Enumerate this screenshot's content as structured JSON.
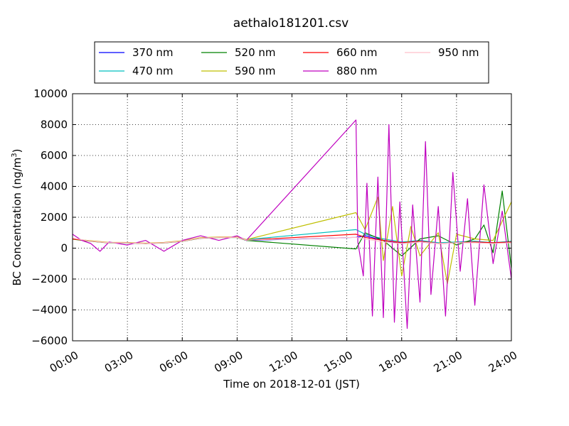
{
  "chart_data": {
    "type": "line",
    "title": "aethalo181201.csv",
    "xlabel": "Time on 2018-12-01 (JST)",
    "ylabel_main": "BC Concentration (ng/m",
    "ylabel_sup": "3",
    "ylabel_close": ")",
    "xlim_hours": [
      0,
      24
    ],
    "ylim": [
      -6000,
      10000
    ],
    "x_ticks": [
      {
        "hour": 0,
        "label": "00:00"
      },
      {
        "hour": 3,
        "label": "03:00"
      },
      {
        "hour": 6,
        "label": "06:00"
      },
      {
        "hour": 9,
        "label": "09:00"
      },
      {
        "hour": 12,
        "label": "12:00"
      },
      {
        "hour": 15,
        "label": "15:00"
      },
      {
        "hour": 18,
        "label": "18:00"
      },
      {
        "hour": 21,
        "label": "21:00"
      },
      {
        "hour": 24,
        "label": "24:00"
      }
    ],
    "y_ticks": [
      {
        "value": 10000,
        "label": "10000"
      },
      {
        "value": 8000,
        "label": "8000"
      },
      {
        "value": 6000,
        "label": "6000"
      },
      {
        "value": 4000,
        "label": "4000"
      },
      {
        "value": 2000,
        "label": "2000"
      },
      {
        "value": 0,
        "label": "0"
      },
      {
        "value": -2000,
        "label": "−2000"
      },
      {
        "value": -4000,
        "label": "−4000"
      },
      {
        "value": -6000,
        "label": "−6000"
      }
    ],
    "grid": true,
    "legend_position": "top",
    "series": [
      {
        "name": "370 nm",
        "color": "#0000ff",
        "points": [
          [
            0,
            600
          ],
          [
            1,
            450
          ],
          [
            2,
            350
          ],
          [
            3,
            350
          ],
          [
            4,
            300
          ],
          [
            5,
            350
          ],
          [
            6,
            450
          ],
          [
            7,
            650
          ],
          [
            8,
            700
          ],
          [
            9,
            700
          ],
          [
            9.5,
            500
          ],
          [
            15.5,
            700
          ],
          [
            16,
            800
          ],
          [
            17,
            500
          ],
          [
            18,
            300
          ],
          [
            19,
            400
          ],
          [
            20,
            300
          ],
          [
            21,
            350
          ],
          [
            22,
            400
          ],
          [
            23,
            300
          ],
          [
            24,
            400
          ]
        ]
      },
      {
        "name": "470 nm",
        "color": "#00bfbf",
        "points": [
          [
            0,
            620
          ],
          [
            1,
            460
          ],
          [
            2,
            360
          ],
          [
            3,
            360
          ],
          [
            4,
            310
          ],
          [
            5,
            360
          ],
          [
            6,
            460
          ],
          [
            7,
            660
          ],
          [
            8,
            710
          ],
          [
            9,
            710
          ],
          [
            9.5,
            550
          ],
          [
            15.5,
            1200
          ],
          [
            16,
            900
          ],
          [
            17,
            600
          ],
          [
            18,
            400
          ],
          [
            19,
            500
          ],
          [
            20,
            350
          ],
          [
            21,
            400
          ],
          [
            22,
            450
          ],
          [
            23,
            350
          ],
          [
            24,
            450
          ]
        ]
      },
      {
        "name": "520 nm",
        "color": "#008000",
        "points": [
          [
            0,
            580
          ],
          [
            1,
            440
          ],
          [
            2,
            340
          ],
          [
            3,
            340
          ],
          [
            4,
            290
          ],
          [
            5,
            340
          ],
          [
            6,
            440
          ],
          [
            7,
            640
          ],
          [
            8,
            690
          ],
          [
            9,
            690
          ],
          [
            9.5,
            500
          ],
          [
            15.5,
            -50
          ],
          [
            16,
            1000
          ],
          [
            17,
            500
          ],
          [
            18,
            -500
          ],
          [
            19,
            600
          ],
          [
            20,
            800
          ],
          [
            21,
            200
          ],
          [
            22,
            600
          ],
          [
            22.5,
            1500
          ],
          [
            23,
            -300
          ],
          [
            23.5,
            3700
          ],
          [
            24,
            -1300
          ]
        ]
      },
      {
        "name": "590 nm",
        "color": "#bfbf00",
        "points": [
          [
            0,
            600
          ],
          [
            1,
            480
          ],
          [
            2,
            370
          ],
          [
            3,
            370
          ],
          [
            4,
            320
          ],
          [
            5,
            370
          ],
          [
            6,
            480
          ],
          [
            7,
            680
          ],
          [
            8,
            720
          ],
          [
            9,
            720
          ],
          [
            9.5,
            550
          ],
          [
            15.5,
            2300
          ],
          [
            16,
            1200
          ],
          [
            16.7,
            3300
          ],
          [
            17,
            -800
          ],
          [
            17.5,
            2700
          ],
          [
            18,
            -1800
          ],
          [
            18.5,
            1400
          ],
          [
            19,
            -500
          ],
          [
            20,
            1000
          ],
          [
            20.5,
            -2300
          ],
          [
            21,
            900
          ],
          [
            22,
            600
          ],
          [
            23,
            500
          ],
          [
            24,
            3000
          ]
        ]
      },
      {
        "name": "660 nm",
        "color": "#ff0000",
        "points": [
          [
            0,
            600
          ],
          [
            1,
            450
          ],
          [
            2,
            350
          ],
          [
            3,
            350
          ],
          [
            4,
            300
          ],
          [
            5,
            350
          ],
          [
            6,
            450
          ],
          [
            7,
            650
          ],
          [
            8,
            700
          ],
          [
            9,
            700
          ],
          [
            9.5,
            520
          ],
          [
            15.5,
            900
          ],
          [
            16,
            700
          ],
          [
            17,
            500
          ],
          [
            18,
            350
          ],
          [
            19,
            450
          ],
          [
            20,
            300
          ],
          [
            21,
            350
          ],
          [
            22,
            400
          ],
          [
            23,
            350
          ],
          [
            24,
            400
          ]
        ]
      },
      {
        "name": "880 nm",
        "color": "#bf00bf",
        "points": [
          [
            0,
            900
          ],
          [
            0.5,
            500
          ],
          [
            1,
            300
          ],
          [
            1.5,
            -200
          ],
          [
            2,
            400
          ],
          [
            3,
            200
          ],
          [
            4,
            500
          ],
          [
            5,
            -200
          ],
          [
            6,
            500
          ],
          [
            7,
            800
          ],
          [
            8,
            500
          ],
          [
            9,
            800
          ],
          [
            9.5,
            500
          ],
          [
            15.5,
            8300
          ],
          [
            15.6,
            400
          ],
          [
            15.9,
            -1800
          ],
          [
            16.1,
            4200
          ],
          [
            16.4,
            -4400
          ],
          [
            16.7,
            4600
          ],
          [
            17,
            -4500
          ],
          [
            17.3,
            8000
          ],
          [
            17.6,
            -4800
          ],
          [
            17.9,
            3000
          ],
          [
            18.3,
            -5200
          ],
          [
            18.6,
            2800
          ],
          [
            19,
            -3500
          ],
          [
            19.3,
            6900
          ],
          [
            19.6,
            -3000
          ],
          [
            20,
            2700
          ],
          [
            20.4,
            -4400
          ],
          [
            20.8,
            4900
          ],
          [
            21.2,
            -1500
          ],
          [
            21.6,
            3200
          ],
          [
            22,
            -3700
          ],
          [
            22.5,
            4100
          ],
          [
            23,
            -1000
          ],
          [
            23.5,
            2400
          ],
          [
            24,
            -2000
          ]
        ]
      },
      {
        "name": "950 nm",
        "color": "#ffc0cb",
        "points": [
          [
            0,
            650
          ],
          [
            1,
            450
          ],
          [
            2,
            350
          ],
          [
            3,
            350
          ],
          [
            4,
            300
          ],
          [
            5,
            350
          ],
          [
            6,
            450
          ],
          [
            7,
            650
          ],
          [
            8,
            700
          ],
          [
            9,
            700
          ],
          [
            9.5,
            520
          ],
          [
            15.5,
            700
          ],
          [
            16,
            600
          ],
          [
            17,
            400
          ],
          [
            18,
            300
          ],
          [
            19,
            400
          ],
          [
            20,
            300
          ],
          [
            21,
            350
          ],
          [
            22,
            350
          ],
          [
            23,
            300
          ],
          [
            24,
            350
          ]
        ]
      }
    ]
  }
}
